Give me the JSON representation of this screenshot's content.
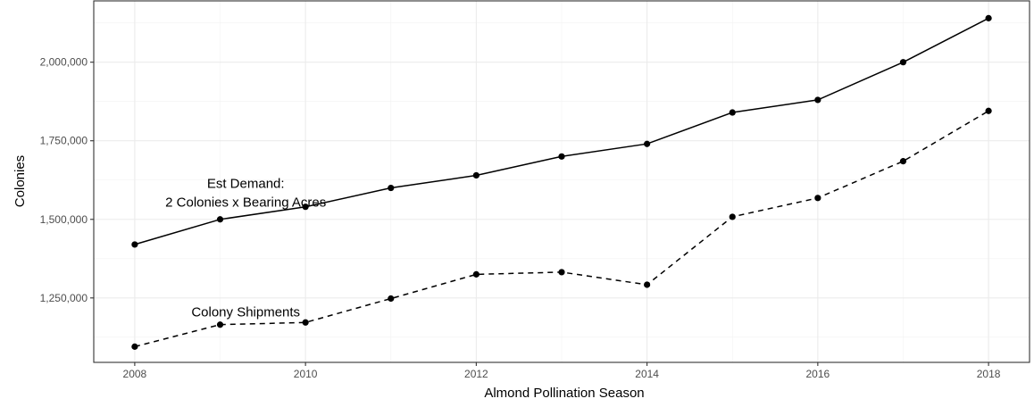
{
  "chart_data": {
    "type": "line",
    "title": "",
    "xlabel": "Almond Pollination Season",
    "ylabel": "Colonies",
    "xlim": [
      2007.52,
      2018.48
    ],
    "ylim": [
      1045000,
      2195000
    ],
    "x_ticks": [
      2008,
      2010,
      2012,
      2014,
      2016,
      2018
    ],
    "y_ticks": [
      1250000,
      1500000,
      1750000,
      2000000
    ],
    "y_tick_labels": [
      "1,250,000",
      "1,500,000",
      "1,750,000",
      "2,000,000"
    ],
    "grid": true,
    "legend": "none",
    "x": [
      2008,
      2009,
      2010,
      2011,
      2012,
      2013,
      2014,
      2015,
      2016,
      2017,
      2018
    ],
    "series": [
      {
        "line_style": "solid",
        "color": "#000000",
        "values": [
          1420000,
          1500000,
          1540000,
          1600000,
          1640000,
          1700000,
          1740000,
          1840000,
          1880000,
          2000000,
          2140000
        ]
      },
      {
        "line_style": "dashed",
        "color": "#000000",
        "values": [
          1095000,
          1165000,
          1172000,
          1248000,
          1325000,
          1332000,
          1292000,
          1508000,
          1568000,
          1685000,
          1845000
        ]
      }
    ],
    "annotations": [
      {
        "lines": [
          "Est Demand:",
          "2 Colonies x Bearing Acres"
        ],
        "x": 2009.3,
        "y": 1585000
      },
      {
        "lines": [
          "Colony Shipments"
        ],
        "x": 2009.3,
        "y": 1205000
      }
    ]
  }
}
